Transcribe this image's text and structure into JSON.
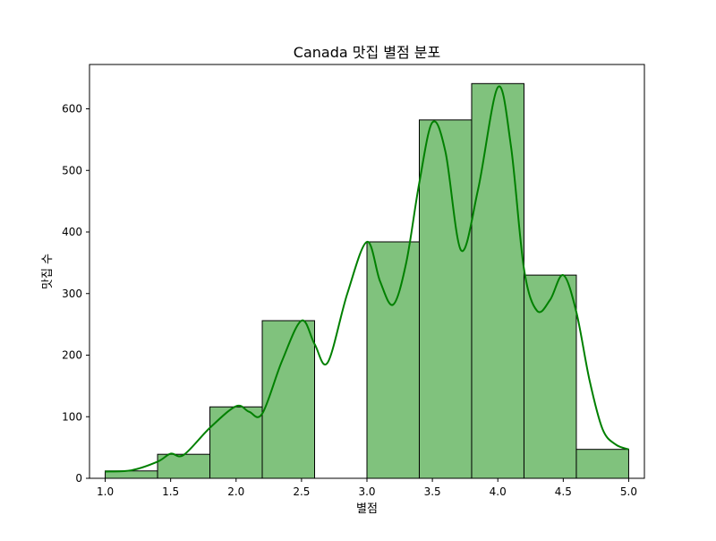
{
  "chart_data": {
    "type": "bar",
    "title": "Canada 맛집 별점 분포",
    "xlabel": "별점",
    "ylabel": "맛집 수",
    "xlim": [
      0.88,
      5.12
    ],
    "ylim": [
      0,
      672
    ],
    "xticks": [
      "1.0",
      "1.5",
      "2.0",
      "2.5",
      "3.0",
      "3.5",
      "4.0",
      "4.5",
      "5.0"
    ],
    "yticks": [
      "0",
      "100",
      "200",
      "300",
      "400",
      "500",
      "600"
    ],
    "bins": [
      {
        "x0": 1.0,
        "x1": 1.4,
        "count": 12
      },
      {
        "x0": 1.4,
        "x1": 1.8,
        "count": 39
      },
      {
        "x0": 1.8,
        "x1": 2.2,
        "count": 116
      },
      {
        "x0": 2.2,
        "x1": 2.6,
        "count": 256
      },
      {
        "x0": 2.6,
        "x1": 3.0,
        "count": 0
      },
      {
        "x0": 3.0,
        "x1": 3.4,
        "count": 384
      },
      {
        "x0": 3.4,
        "x1": 3.8,
        "count": 582
      },
      {
        "x0": 3.8,
        "x1": 4.2,
        "count": 641
      },
      {
        "x0": 4.2,
        "x1": 4.6,
        "count": 330
      },
      {
        "x0": 4.6,
        "x1": 5.0,
        "count": 47
      }
    ],
    "kde": {
      "x": [
        1.0,
        1.2,
        1.4,
        1.5,
        1.6,
        1.8,
        2.0,
        2.1,
        2.2,
        2.35,
        2.5,
        2.6,
        2.7,
        2.85,
        3.0,
        3.1,
        3.2,
        3.3,
        3.4,
        3.5,
        3.6,
        3.72,
        3.85,
        4.0,
        4.1,
        4.2,
        4.3,
        4.4,
        4.5,
        4.6,
        4.7,
        4.8,
        4.9,
        5.0
      ],
      "y": [
        11,
        13,
        27,
        40,
        38,
        82,
        117,
        108,
        105,
        190,
        256,
        218,
        188,
        300,
        384,
        320,
        282,
        350,
        480,
        578,
        530,
        370,
        470,
        635,
        540,
        340,
        272,
        290,
        330,
        270,
        160,
        80,
        55,
        47
      ]
    },
    "grid": false,
    "colors": {
      "bar_fill": "#80c27d",
      "bar_edge": "#000000",
      "kde_line": "#008000"
    }
  }
}
